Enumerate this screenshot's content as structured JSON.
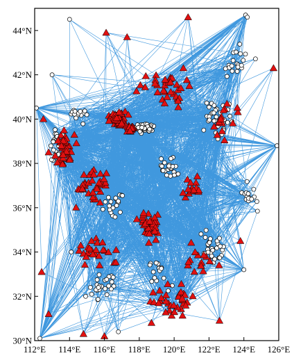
{
  "map": {
    "x_axis": {
      "range": [
        112,
        126
      ],
      "ticks": [
        {
          "value": 112,
          "label": "112°E"
        },
        {
          "value": 114,
          "label": "114°E"
        },
        {
          "value": 116,
          "label": "116°E"
        },
        {
          "value": 118,
          "label": "118°E"
        },
        {
          "value": 120,
          "label": "120°E"
        },
        {
          "value": 122,
          "label": "122°E"
        },
        {
          "value": 124,
          "label": "124°E"
        },
        {
          "value": 126,
          "label": "126°E"
        }
      ]
    },
    "y_axis": {
      "range": [
        30,
        45
      ],
      "ticks": [
        {
          "value": 30,
          "label": "30°N"
        },
        {
          "value": 32,
          "label": "32°N"
        },
        {
          "value": 34,
          "label": "34°N"
        },
        {
          "value": 36,
          "label": "36°N"
        },
        {
          "value": 38,
          "label": "38°N"
        },
        {
          "value": 40,
          "label": "40°N"
        },
        {
          "value": 42,
          "label": "42°N"
        },
        {
          "value": 44,
          "label": "44°N"
        }
      ]
    },
    "colors": {
      "ray_paths": "#1f86d8",
      "station_triangle": "#e01010",
      "event_circle": "#ffffff",
      "outline": "#000000"
    },
    "legend": "none",
    "grid": false
  }
}
